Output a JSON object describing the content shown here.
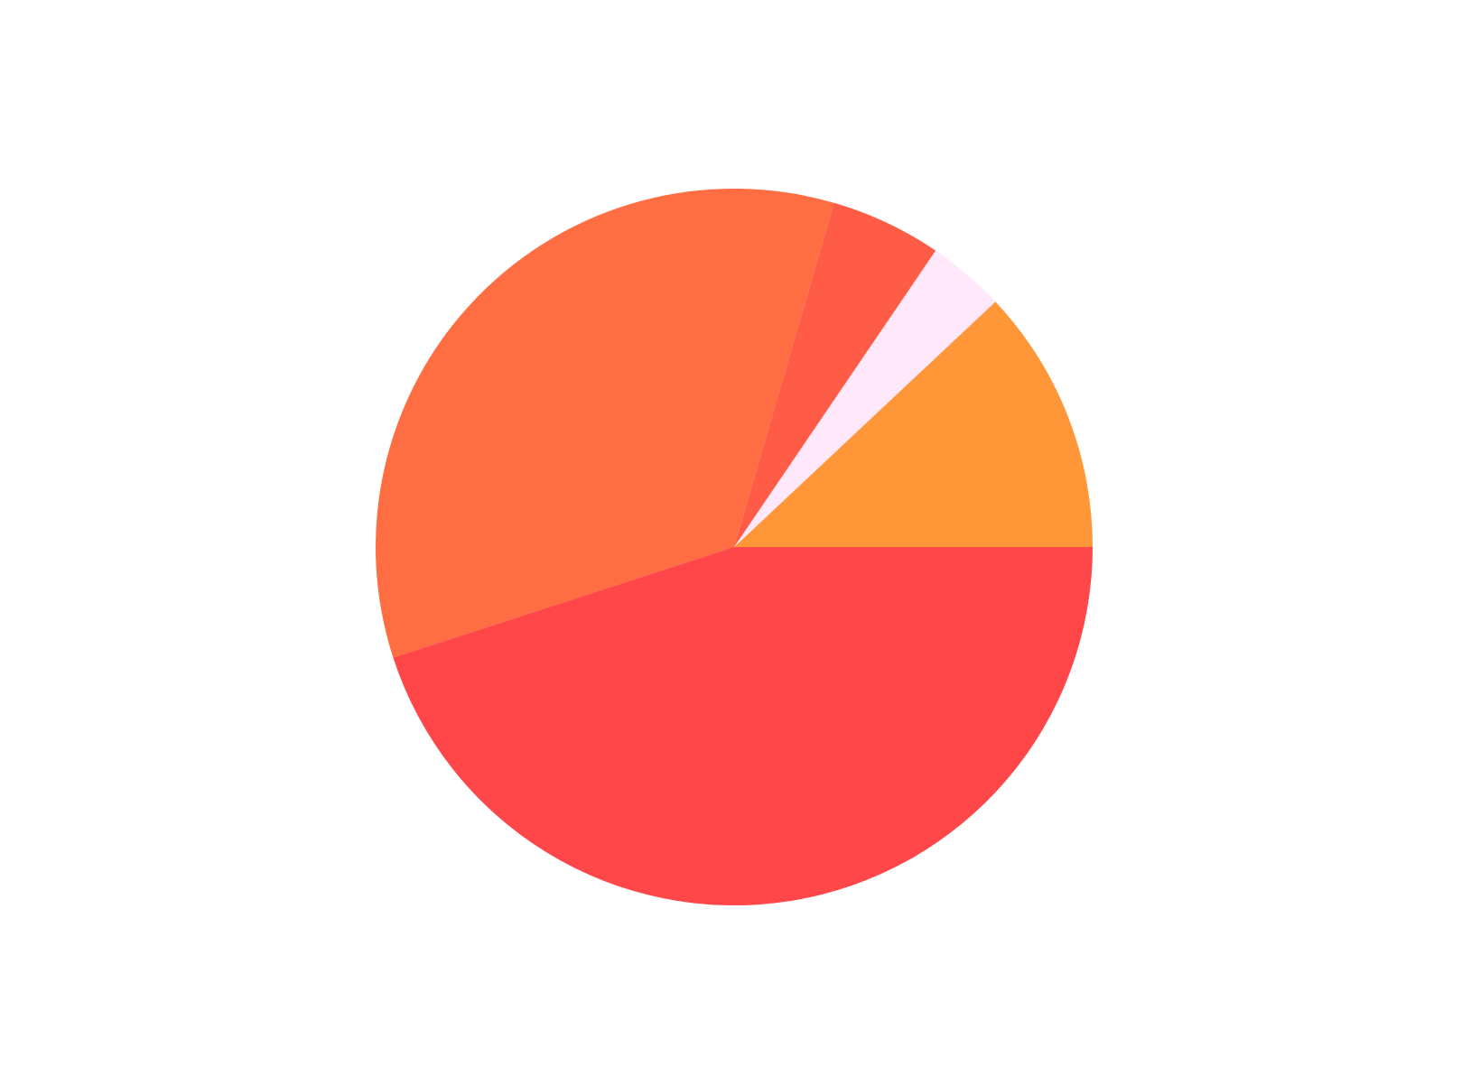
{
  "chart_data": {
    "type": "pie",
    "title": "",
    "categories": [
      "",
      "",
      "",
      "",
      ""
    ],
    "values": [
      12.0,
      3.5,
      5.0,
      34.5,
      45.0
    ],
    "colors": [
      "#FF9638",
      "#FFE8FA",
      "#FF5C48",
      "#FF6D42",
      "#FF474A"
    ],
    "start_angle_deg": 0,
    "direction": "counterclockwise",
    "legend": "none"
  }
}
